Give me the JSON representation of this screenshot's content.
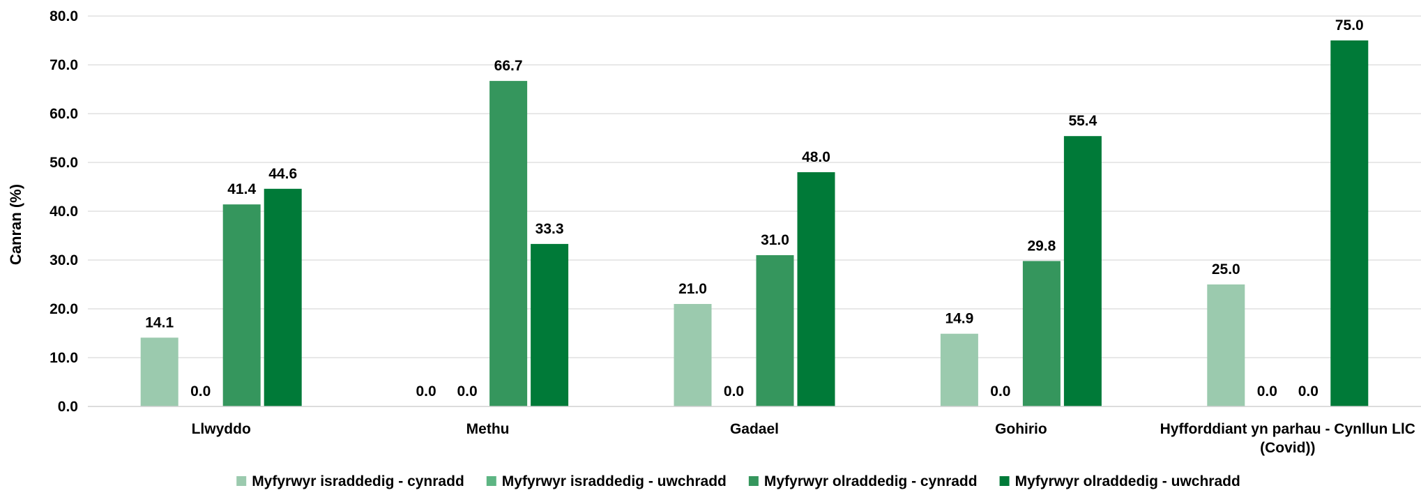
{
  "chart_data": {
    "type": "bar",
    "title": "",
    "xlabel": "",
    "ylabel": "Canran (%)",
    "ylim": [
      0,
      80
    ],
    "ytick_step": 10,
    "ytick_decimals": 1,
    "grid": true,
    "legend_position": "bottom",
    "categories": [
      [
        "Llwyddo"
      ],
      [
        "Methu"
      ],
      [
        "Gadael"
      ],
      [
        "Gohirio"
      ],
      [
        "Hyfforddiant yn parhau - Cynllun LlC",
        "(Covid))"
      ]
    ],
    "series": [
      {
        "name": "Myfyrwyr israddedig - cynradd",
        "color": "#9bcaae",
        "values": [
          14.1,
          0.0,
          21.0,
          14.9,
          25.0
        ]
      },
      {
        "name": "Myfyrwyr israddedig - uwchradd",
        "color": "#5db583",
        "values": [
          0.0,
          0.0,
          0.0,
          0.0,
          0.0
        ]
      },
      {
        "name": "Myfyrwyr olraddedig - cynradd",
        "color": "#35965d",
        "values": [
          41.4,
          66.7,
          31.0,
          29.8,
          0.0
        ]
      },
      {
        "name": "Myfyrwyr olraddedig - uwchradd",
        "color": "#007a38",
        "values": [
          44.6,
          33.3,
          48.0,
          55.4,
          75.0
        ]
      }
    ]
  }
}
